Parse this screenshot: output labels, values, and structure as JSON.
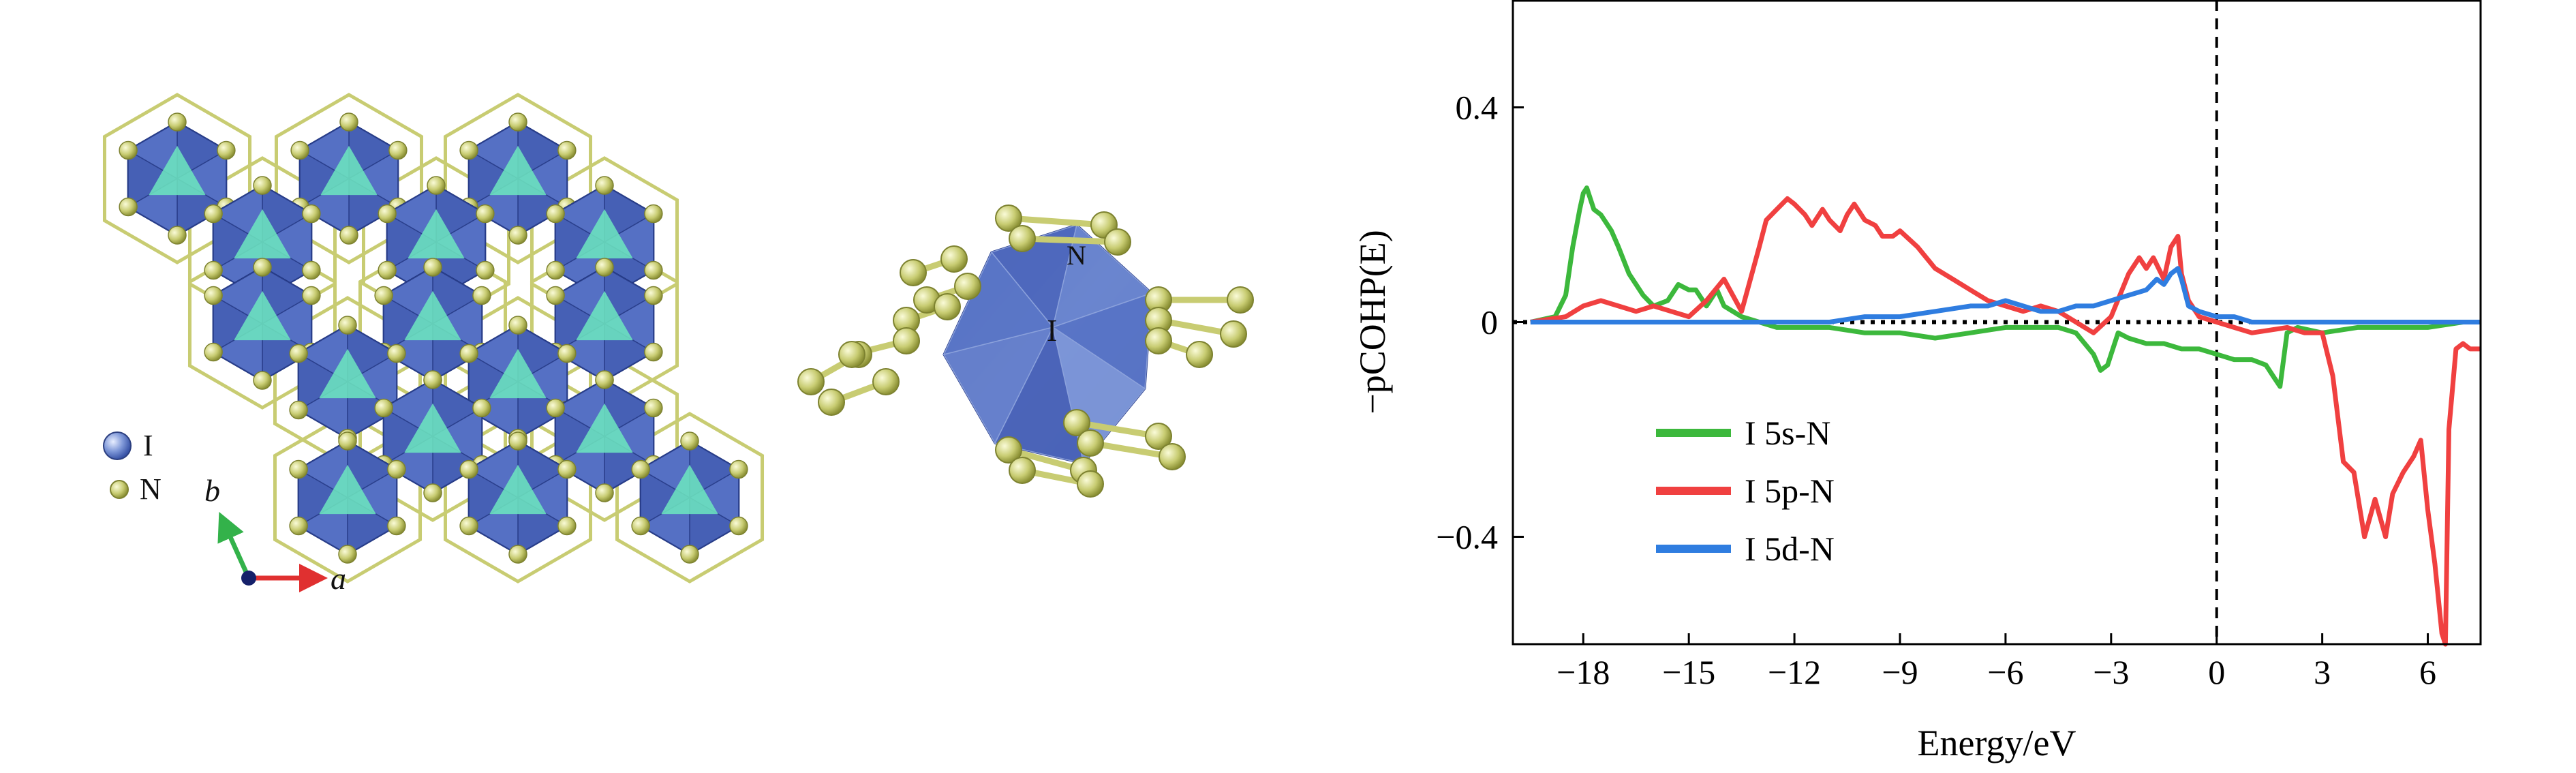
{
  "structure": {
    "legend": [
      {
        "symbol": "I",
        "color": "#5b78c8"
      },
      {
        "symbol": "N",
        "color": "#c8cc72"
      }
    ],
    "axes": [
      {
        "label": "b",
        "color": "#33b24a"
      },
      {
        "label": "a",
        "color": "#e03030"
      }
    ],
    "cluster_labels": [
      "N",
      "I"
    ]
  },
  "chart_data": {
    "type": "line",
    "xlabel": "Energy/eV",
    "ylabel": "−pCOHP(E)",
    "xlim": [
      -20,
      7.5
    ],
    "ylim": [
      -0.6,
      0.6
    ],
    "xticks": [
      -18,
      -15,
      -12,
      -9,
      -6,
      -3,
      0,
      3,
      6
    ],
    "xtick_labels": [
      "−18",
      "−15",
      "−12",
      "−9",
      "−6",
      "−3",
      "0",
      "3",
      "6"
    ],
    "yticks": [
      0.4,
      0,
      -0.4
    ],
    "ytick_labels": [
      "0.4",
      "0",
      "−0.4"
    ],
    "fermi_level": 0,
    "zero_line": 0,
    "legend_position": "lower-left",
    "series": [
      {
        "name": "I 5s-N",
        "color": "#3cb83c",
        "x": [
          -19.5,
          -18.8,
          -18.5,
          -18.3,
          -18.1,
          -18.0,
          -17.9,
          -17.7,
          -17.5,
          -17.2,
          -17.0,
          -16.7,
          -16.3,
          -16.0,
          -15.6,
          -15.3,
          -15.0,
          -14.8,
          -14.5,
          -14.2,
          -14.0,
          -13.5,
          -13.0,
          -12.5,
          -12.0,
          -11.0,
          -10.0,
          -9.0,
          -8.0,
          -7.0,
          -6.0,
          -5.0,
          -4.5,
          -4.0,
          -3.5,
          -3.3,
          -3.1,
          -3.0,
          -2.8,
          -2.5,
          -2.0,
          -1.5,
          -1.0,
          -0.5,
          0.0,
          0.5,
          1.0,
          1.4,
          1.6,
          1.8,
          2.0,
          2.3,
          3.0,
          4.0,
          5.0,
          6.0,
          7.0,
          7.5
        ],
        "y": [
          0.0,
          0.01,
          0.05,
          0.14,
          0.21,
          0.24,
          0.25,
          0.21,
          0.2,
          0.17,
          0.14,
          0.09,
          0.05,
          0.03,
          0.04,
          0.07,
          0.06,
          0.06,
          0.03,
          0.06,
          0.03,
          0.01,
          0.0,
          -0.01,
          -0.01,
          -0.01,
          -0.02,
          -0.02,
          -0.03,
          -0.02,
          -0.01,
          -0.01,
          -0.01,
          -0.02,
          -0.06,
          -0.09,
          -0.08,
          -0.06,
          -0.02,
          -0.03,
          -0.04,
          -0.04,
          -0.05,
          -0.05,
          -0.06,
          -0.07,
          -0.07,
          -0.08,
          -0.1,
          -0.12,
          -0.02,
          -0.01,
          -0.02,
          -0.01,
          -0.01,
          -0.01,
          0.0,
          0.0
        ]
      },
      {
        "name": "I 5p-N",
        "color": "#f04040",
        "x": [
          -19.5,
          -18.5,
          -18.0,
          -17.5,
          -17.0,
          -16.5,
          -16.0,
          -15.5,
          -15.0,
          -14.5,
          -14.0,
          -13.5,
          -13.0,
          -12.8,
          -12.5,
          -12.2,
          -12.0,
          -11.7,
          -11.5,
          -11.2,
          -11.0,
          -10.7,
          -10.5,
          -10.3,
          -10.0,
          -9.7,
          -9.5,
          -9.2,
          -9.0,
          -8.5,
          -8.0,
          -7.5,
          -7.0,
          -6.5,
          -6.0,
          -5.5,
          -5.0,
          -4.5,
          -4.0,
          -3.5,
          -3.0,
          -2.5,
          -2.2,
          -2.0,
          -1.8,
          -1.5,
          -1.3,
          -1.1,
          -1.0,
          -0.8,
          -0.5,
          0.0,
          0.5,
          1.0,
          2.0,
          2.5,
          3.0,
          3.3,
          3.6,
          3.9,
          4.2,
          4.5,
          4.8,
          5.0,
          5.3,
          5.6,
          5.8,
          6.0,
          6.2,
          6.4,
          6.5,
          6.6,
          6.8,
          7.0,
          7.2,
          7.5
        ],
        "y": [
          0.0,
          0.01,
          0.03,
          0.04,
          0.03,
          0.02,
          0.03,
          0.02,
          0.01,
          0.04,
          0.08,
          0.02,
          0.14,
          0.19,
          0.21,
          0.23,
          0.22,
          0.2,
          0.18,
          0.21,
          0.19,
          0.17,
          0.2,
          0.22,
          0.19,
          0.18,
          0.16,
          0.16,
          0.17,
          0.14,
          0.1,
          0.08,
          0.06,
          0.04,
          0.03,
          0.02,
          0.03,
          0.02,
          0.0,
          -0.02,
          0.01,
          0.09,
          0.12,
          0.1,
          0.12,
          0.08,
          0.14,
          0.16,
          0.09,
          0.04,
          0.01,
          0.0,
          -0.01,
          -0.02,
          -0.01,
          -0.02,
          -0.02,
          -0.1,
          -0.26,
          -0.28,
          -0.4,
          -0.33,
          -0.4,
          -0.32,
          -0.28,
          -0.25,
          -0.22,
          -0.35,
          -0.45,
          -0.58,
          -0.6,
          -0.2,
          -0.05,
          -0.04,
          -0.05,
          -0.05
        ]
      },
      {
        "name": "I 5d-N",
        "color": "#2f7de0",
        "x": [
          -19.5,
          -18.0,
          -16.0,
          -14.0,
          -12.0,
          -11.0,
          -10.0,
          -9.0,
          -8.0,
          -7.0,
          -6.5,
          -6.0,
          -5.5,
          -5.0,
          -4.5,
          -4.0,
          -3.5,
          -3.0,
          -2.5,
          -2.0,
          -1.7,
          -1.5,
          -1.3,
          -1.1,
          -1.0,
          -0.8,
          -0.5,
          0.0,
          0.5,
          1.0,
          2.0,
          3.0,
          4.0,
          5.0,
          6.0,
          7.0,
          7.5
        ],
        "y": [
          0.0,
          0.0,
          0.0,
          0.0,
          0.0,
          0.0,
          0.01,
          0.01,
          0.02,
          0.03,
          0.03,
          0.04,
          0.03,
          0.02,
          0.02,
          0.03,
          0.03,
          0.04,
          0.05,
          0.06,
          0.08,
          0.07,
          0.09,
          0.1,
          0.08,
          0.03,
          0.02,
          0.01,
          0.01,
          0.0,
          0.0,
          0.0,
          0.0,
          0.0,
          0.0,
          0.0,
          0.0
        ]
      }
    ]
  }
}
